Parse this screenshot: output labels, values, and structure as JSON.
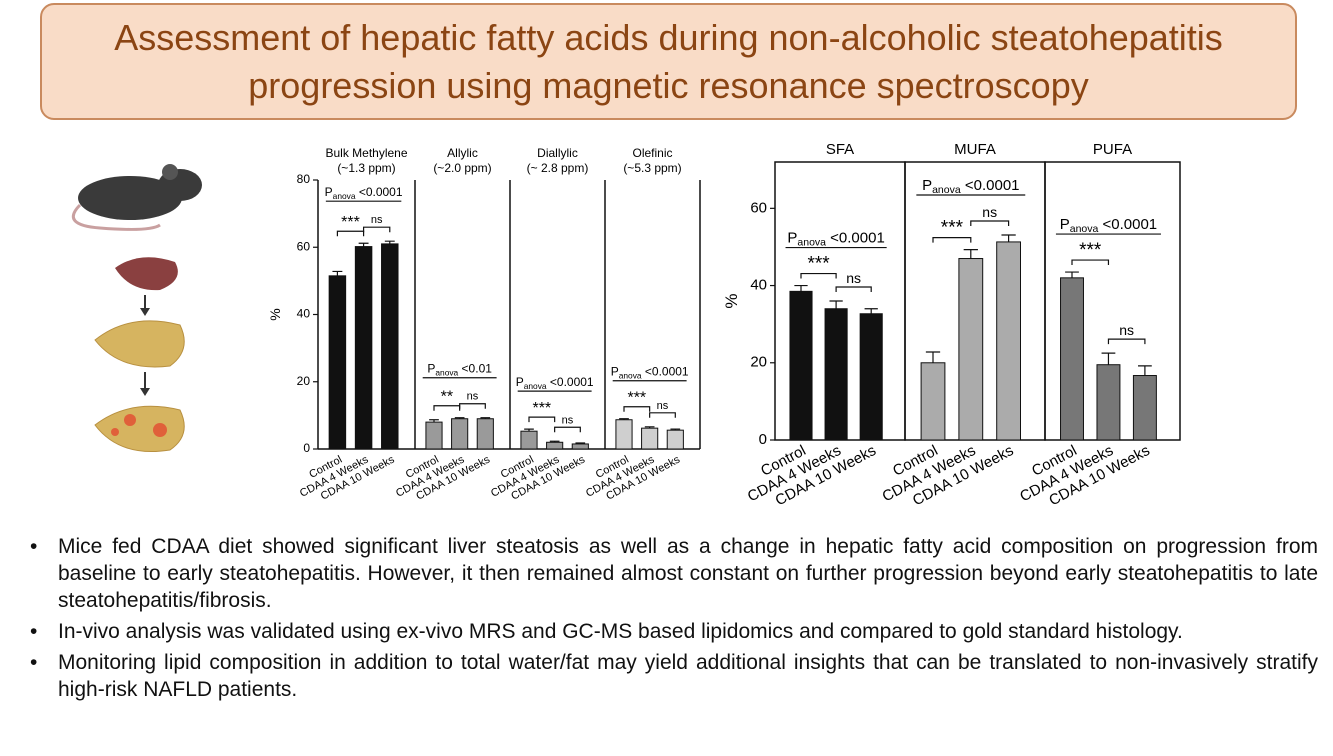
{
  "header": {
    "title": [
      "Assessment of hepatic fatty acids during non-alcoholic steatohepatitis",
      "progression using magnetic resonance spectroscopy"
    ]
  },
  "chart_data": [
    {
      "type": "bar",
      "title": [
        "Bulk Methylene",
        "(~1.3 ppm)"
      ],
      "categories": [
        "Control",
        "CDAA 4 Weeks",
        "CDAA 10 Weeks"
      ],
      "values": [
        51.5,
        60.2,
        61
      ],
      "errors": [
        1.3,
        1,
        0.8
      ],
      "color": "#111111",
      "ylim": [
        0,
        80
      ],
      "yticks": [
        0,
        20,
        40,
        60,
        80
      ],
      "ylabel": "%",
      "anova": {
        "p": "P",
        "sub": "anova",
        "text": " <0.0001"
      },
      "significance": [
        "***",
        "ns"
      ]
    },
    {
      "type": "bar",
      "title": [
        "Allylic",
        "(~2.0 ppm)"
      ],
      "categories": [
        "Control",
        "CDAA 4 Weeks",
        "CDAA 10 Weeks"
      ],
      "values": [
        8,
        9,
        9
      ],
      "errors": [
        0.7,
        0.3,
        0.3
      ],
      "color": "#9a9a9a",
      "ylim": [
        0,
        80
      ],
      "anova": {
        "p": "P",
        "sub": "anova",
        "text": " <0.01"
      },
      "significance": [
        "**",
        "ns"
      ]
    },
    {
      "type": "bar",
      "title": [
        "Diallylic",
        "(~ 2.8 ppm)"
      ],
      "categories": [
        "Control",
        "CDAA 4 Weeks",
        "CDAA 10 Weeks"
      ],
      "values": [
        5.3,
        2,
        1.5
      ],
      "errors": [
        0.6,
        0.3,
        0.3
      ],
      "color": "#9a9a9a",
      "ylim": [
        0,
        80
      ],
      "anova": {
        "p": "P",
        "sub": "anova",
        "text": " <0.0001"
      },
      "significance": [
        "***",
        "ns"
      ]
    },
    {
      "type": "bar",
      "title": [
        "Olefinic",
        "(~5.3 ppm)"
      ],
      "categories": [
        "Control",
        "CDAA 4 Weeks",
        "CDAA 10 Weeks"
      ],
      "values": [
        8.7,
        6.2,
        5.6
      ],
      "errors": [
        0.3,
        0.4,
        0.3
      ],
      "color": "#cfcfcf",
      "ylim": [
        0,
        80
      ],
      "anova": {
        "p": "P",
        "sub": "anova",
        "text": " <0.0001"
      },
      "significance": [
        "***",
        "ns"
      ]
    },
    {
      "type": "bar",
      "title": [
        "SFA"
      ],
      "categories": [
        "Control",
        "CDAA 4 Weeks",
        "CDAA 10 Weeks"
      ],
      "values": [
        38.5,
        34,
        32.7
      ],
      "errors": [
        1.5,
        2,
        1.3
      ],
      "color": "#111111",
      "ylim": [
        0,
        72
      ],
      "yticks": [
        0,
        20,
        40,
        60
      ],
      "ylabel": "%",
      "anova": {
        "p": "P",
        "sub": "anova",
        "text": " <0.0001"
      },
      "significance": [
        "***",
        "ns"
      ]
    },
    {
      "type": "bar",
      "title": [
        "MUFA"
      ],
      "categories": [
        "Control",
        "CDAA 4 Weeks",
        "CDAA 10 Weeks"
      ],
      "values": [
        20,
        47,
        51.3
      ],
      "errors": [
        2.8,
        2.3,
        1.8
      ],
      "color": "#ababab",
      "ylim": [
        0,
        72
      ],
      "anova": {
        "p": "P",
        "sub": "anova",
        "text": " <0.0001"
      },
      "significance": [
        "***",
        "ns"
      ]
    },
    {
      "type": "bar",
      "title": [
        "PUFA"
      ],
      "categories": [
        "Control",
        "CDAA 4 Weeks",
        "CDAA 10 Weeks"
      ],
      "values": [
        42,
        19.5,
        16.7
      ],
      "errors": [
        1.5,
        3,
        2.5
      ],
      "color": "#777777",
      "ylim": [
        0,
        72
      ],
      "anova": {
        "p": "P",
        "sub": "anova",
        "text": " <0.0001"
      },
      "significance": [
        "***",
        "ns"
      ]
    }
  ],
  "bullets": [
    "Mice fed CDAA diet showed significant liver steatosis as well as a change in hepatic fatty acid composition on progression from baseline to early steatohepatitis. However, it then remained almost constant on further progression beyond early steatohepatitis to late steatohepatitis/fibrosis.",
    "In-vivo analysis was validated using ex-vivo MRS and GC-MS based lipidomics and compared to gold standard histology.",
    "Monitoring lipid composition in addition to total water/fat may yield additional insights that can be translated to non-invasively stratify high-risk NAFLD patients."
  ]
}
